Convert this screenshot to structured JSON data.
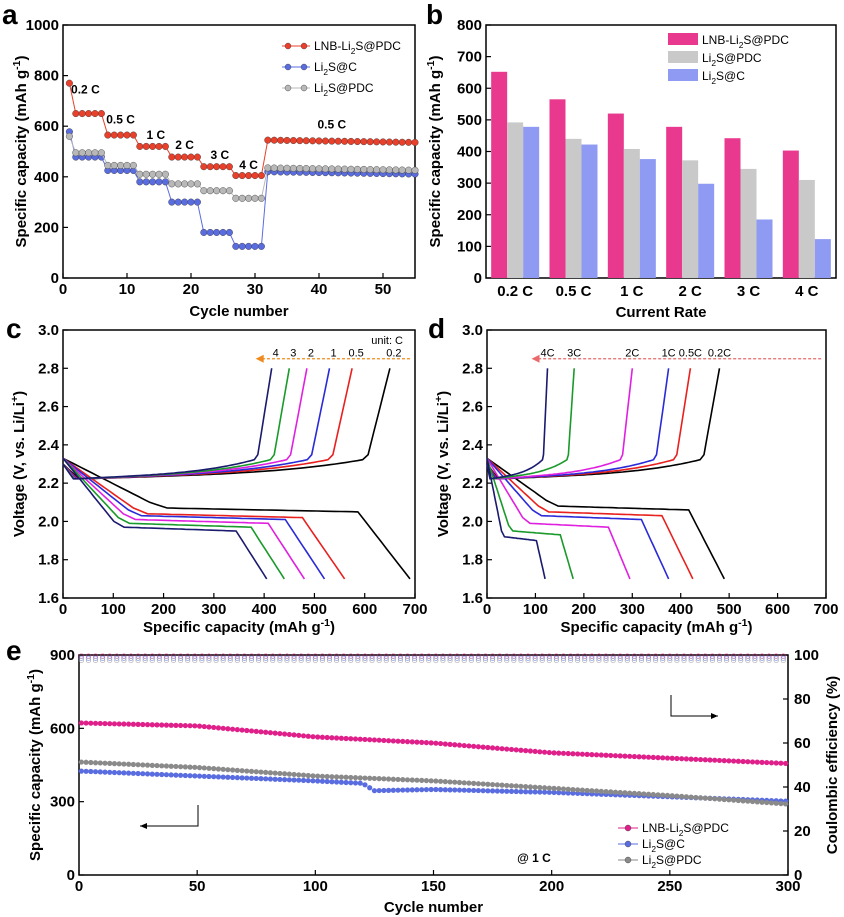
{
  "chart_data": [
    {
      "id": "a",
      "panel_label": "a",
      "type": "scatter",
      "xlabel": "Cycle number",
      "ylabel": "Specific capacity (mAh g⁻¹)",
      "xlim": [
        0,
        55
      ],
      "ylim": [
        0,
        1000
      ],
      "xticks": [
        0,
        10,
        20,
        30,
        40,
        50
      ],
      "yticks": [
        0,
        200,
        400,
        600,
        800,
        1000
      ],
      "rate_labels": [
        {
          "text": "0.2 C",
          "x": 3.5,
          "y": 730
        },
        {
          "text": "0.5 C",
          "x": 9,
          "y": 610
        },
        {
          "text": "1 C",
          "x": 14.5,
          "y": 550
        },
        {
          "text": "2 C",
          "x": 19,
          "y": 510
        },
        {
          "text": "3 C",
          "x": 24.5,
          "y": 470
        },
        {
          "text": "4 C",
          "x": 29,
          "y": 430
        },
        {
          "text": "0.5 C",
          "x": 42,
          "y": 590
        }
      ],
      "legend": "top-right",
      "series": [
        {
          "name": "LNB-Li₂S@PDC",
          "color": "#e8402b",
          "segments": [
            [
              1,
              1,
              770
            ],
            [
              2,
              6,
              650
            ],
            [
              7,
              11,
              565
            ],
            [
              12,
              16,
              520
            ],
            [
              17,
              21,
              478
            ],
            [
              22,
              26,
              440
            ],
            [
              27,
              31,
              405
            ],
            [
              32,
              55,
              545
            ]
          ],
          "ramp": [
            [
              1,
              770
            ],
            [
              2,
              665
            ],
            [
              3,
              650
            ]
          ]
        },
        {
          "name": "Li₂S@C",
          "color": "#5a6de0",
          "segments": [
            [
              1,
              1,
              578
            ],
            [
              2,
              6,
              478
            ],
            [
              7,
              11,
              425
            ],
            [
              12,
              16,
              380
            ],
            [
              17,
              21,
              300
            ],
            [
              22,
              26,
              180
            ],
            [
              27,
              31,
              125
            ],
            [
              32,
              55,
              420
            ]
          ],
          "ramp": [
            [
              1,
              578
            ],
            [
              2,
              505
            ],
            [
              3,
              485
            ]
          ]
        },
        {
          "name": "Li₂S@PDC",
          "color": "#b8b8b8",
          "segments": [
            [
              1,
              1,
              560
            ],
            [
              2,
              6,
              495
            ],
            [
              7,
              11,
              445
            ],
            [
              12,
              16,
              410
            ],
            [
              17,
              21,
              372
            ],
            [
              22,
              26,
              345
            ],
            [
              27,
              31,
              315
            ],
            [
              32,
              55,
              435
            ]
          ],
          "ramp": [
            [
              1,
              560
            ],
            [
              2,
              500
            ],
            [
              3,
              495
            ]
          ]
        }
      ]
    },
    {
      "id": "b",
      "panel_label": "b",
      "type": "bar",
      "xlabel": "Current Rate",
      "ylabel": "Specific capacity (mAh g⁻¹)",
      "ylim": [
        0,
        800
      ],
      "yticks": [
        0,
        100,
        200,
        300,
        400,
        500,
        600,
        700,
        800
      ],
      "categories": [
        "0.2 C",
        "0.5 C",
        "1 C",
        "2 C",
        "3 C",
        "4 C"
      ],
      "legend": "top-right",
      "series": [
        {
          "name": "LNB-Li₂S@PDC",
          "color": "#e8398f",
          "values": [
            652,
            565,
            520,
            478,
            442,
            403
          ]
        },
        {
          "name": "Li₂S@PDC",
          "color": "#c9c9c9",
          "values": [
            492,
            440,
            408,
            372,
            345,
            310
          ]
        },
        {
          "name": "Li₂S@C",
          "color": "#8f9af2",
          "values": [
            478,
            422,
            376,
            298,
            185,
            123
          ]
        }
      ]
    },
    {
      "id": "c",
      "panel_label": "c",
      "type": "line",
      "xlabel": "Specific capacity (mAh g⁻¹)",
      "ylabel": "Voltage (V, vs. Li/Li⁺)",
      "xlim": [
        0,
        700
      ],
      "ylim": [
        1.6,
        3.0
      ],
      "xticks": [
        0,
        100,
        200,
        300,
        400,
        500,
        600,
        700
      ],
      "yticks": [
        1.6,
        1.8,
        2.0,
        2.2,
        2.4,
        2.6,
        2.8,
        3.0
      ],
      "unit_note": "unit: C",
      "curve_labels": [
        "4",
        "3",
        "2",
        "1",
        "0.5",
        "0.2"
      ],
      "series": [
        {
          "rate": "0.2",
          "color": "#000000",
          "charge_end": 650,
          "discharge_end": 690,
          "plateau": 2.07
        },
        {
          "rate": "0.5",
          "color": "#e8201e",
          "charge_end": 575,
          "discharge_end": 560,
          "plateau": 2.04
        },
        {
          "rate": "1",
          "color": "#2a2ad8",
          "charge_end": 530,
          "discharge_end": 520,
          "plateau": 2.03
        },
        {
          "rate": "2",
          "color": "#e020e0",
          "charge_end": 485,
          "discharge_end": 480,
          "plateau": 2.01
        },
        {
          "rate": "3",
          "color": "#1a9a2a",
          "charge_end": 450,
          "discharge_end": 440,
          "plateau": 1.99
        },
        {
          "rate": "4",
          "color": "#1a1a6e",
          "charge_end": 415,
          "discharge_end": 405,
          "plateau": 1.97
        }
      ]
    },
    {
      "id": "d",
      "panel_label": "d",
      "type": "line",
      "xlabel": "Specific capacity (mAh g⁻¹)",
      "ylabel": "Voltage (V, vs. Li/Li⁺)",
      "xlim": [
        0,
        700
      ],
      "ylim": [
        1.6,
        3.0
      ],
      "xticks": [
        0,
        100,
        200,
        300,
        400,
        500,
        600,
        700
      ],
      "yticks": [
        1.6,
        1.8,
        2.0,
        2.2,
        2.4,
        2.6,
        2.8,
        3.0
      ],
      "curve_labels": [
        "4C",
        "3C",
        "2C",
        "1C",
        "0.5C",
        "0.2C"
      ],
      "series": [
        {
          "rate": "0.2C",
          "color": "#000000",
          "charge_end": 480,
          "discharge_end": 490,
          "plateau": 2.08
        },
        {
          "rate": "0.5C",
          "color": "#e8201e",
          "charge_end": 420,
          "discharge_end": 425,
          "plateau": 2.05
        },
        {
          "rate": "1C",
          "color": "#2a2ad8",
          "charge_end": 375,
          "discharge_end": 375,
          "plateau": 2.03
        },
        {
          "rate": "2C",
          "color": "#e020e0",
          "charge_end": 300,
          "discharge_end": 295,
          "plateau": 1.99
        },
        {
          "rate": "3C",
          "color": "#1a9a2a",
          "charge_end": 180,
          "discharge_end": 178,
          "plateau": 1.95
        },
        {
          "rate": "4C",
          "color": "#1a1a6e",
          "charge_end": 125,
          "discharge_end": 120,
          "plateau": 1.92
        }
      ]
    },
    {
      "id": "e",
      "panel_label": "e",
      "type": "scatter",
      "xlabel": "Cycle number",
      "ylabel": "Specific capacity (mAh g⁻¹)",
      "y2label": "Coulombic efficiency (%)",
      "xlim": [
        0,
        300
      ],
      "ylim": [
        0,
        900
      ],
      "y2lim": [
        0,
        100
      ],
      "xticks": [
        0,
        50,
        100,
        150,
        200,
        250,
        300
      ],
      "yticks": [
        0,
        300,
        600,
        900
      ],
      "y2ticks": [
        0,
        20,
        40,
        60,
        80,
        100
      ],
      "note": "@ 1 C",
      "legend": "bottom-right",
      "series": [
        {
          "name": "LNB-Li₂S@PDC",
          "color": "#e0208a",
          "capacity": [
            [
              1,
              622
            ],
            [
              50,
              610
            ],
            [
              100,
              565
            ],
            [
              150,
              540
            ],
            [
              200,
              500
            ],
            [
              250,
              478
            ],
            [
              300,
              456
            ]
          ],
          "efficiency": 99.5
        },
        {
          "name": "Li₂S@C",
          "color": "#5a6de0",
          "capacity": [
            [
              1,
              425
            ],
            [
              50,
              405
            ],
            [
              100,
              385
            ],
            [
              120,
              375
            ],
            [
              125,
              345
            ],
            [
              150,
              350
            ],
            [
              200,
              338
            ],
            [
              250,
              320
            ],
            [
              300,
              302
            ]
          ],
          "efficiency": 98.5
        },
        {
          "name": "Li₂S@PDC",
          "color": "#8a8a8a",
          "capacity": [
            [
              1,
              462
            ],
            [
              50,
              440
            ],
            [
              100,
              405
            ],
            [
              150,
              385
            ],
            [
              200,
              355
            ],
            [
              250,
              325
            ],
            [
              300,
              290
            ]
          ],
          "efficiency": 97.5
        }
      ]
    }
  ]
}
